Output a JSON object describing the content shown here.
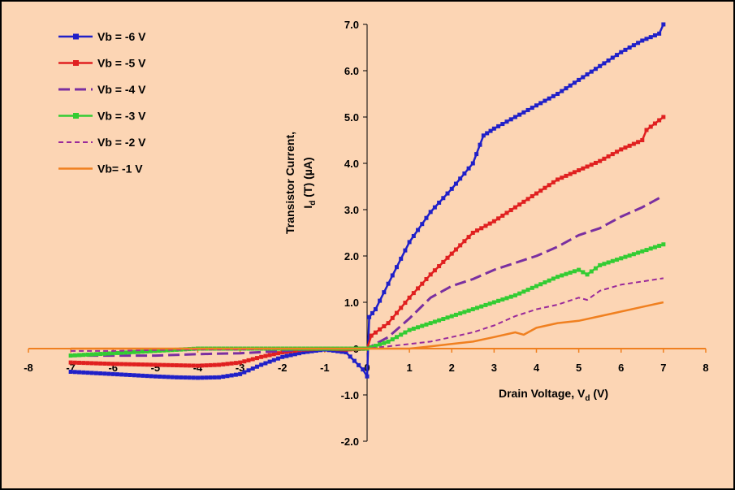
{
  "chart_data": {
    "type": "line",
    "title": "",
    "xlabel_main": "Drain Voltage, V",
    "xlabel_sub": "d",
    "xlabel_unit": " (V)",
    "ylabel_line1": "Transistor Current,",
    "ylabel_main": "I",
    "ylabel_sub": "d",
    "ylabel_rest": " (T) (µA)",
    "xlim": [
      -8,
      8
    ],
    "ylim": [
      -2.0,
      7.0
    ],
    "x_ticks": [
      "-8",
      "-7",
      "-6",
      "-5",
      "-4",
      "-3",
      "-2",
      "-1",
      "0",
      "1",
      "2",
      "3",
      "4",
      "5",
      "6",
      "7",
      "8"
    ],
    "y_ticks": [
      "-2.0",
      "-1.0",
      "0",
      "1.0",
      "2.0",
      "3.0",
      "4.0",
      "5.0",
      "6.0",
      "7.0"
    ],
    "legend_position": "top-left",
    "series": [
      {
        "name": "Vb = -6 V",
        "color": "#2020c8",
        "style": "solid",
        "marker": "square",
        "x": [
          -7,
          -6,
          -5,
          -4.5,
          -4,
          -3.5,
          -3,
          -2.5,
          -2,
          -1.5,
          -1,
          -0.5,
          -0.1,
          0,
          0.05,
          0.2,
          0.5,
          1,
          1.5,
          2,
          2.5,
          2.75,
          3,
          3.5,
          4,
          4.5,
          5,
          5.5,
          6,
          6.5,
          6.9,
          7
        ],
        "y": [
          -0.5,
          -0.55,
          -0.6,
          -0.62,
          -0.63,
          -0.62,
          -0.55,
          -0.35,
          -0.18,
          -0.08,
          -0.02,
          -0.08,
          -0.45,
          -0.6,
          0.68,
          0.85,
          1.4,
          2.3,
          2.95,
          3.45,
          4.0,
          4.6,
          4.75,
          5.0,
          5.25,
          5.5,
          5.8,
          6.1,
          6.4,
          6.65,
          6.8,
          7.0
        ]
      },
      {
        "name": "Vb = -5 V",
        "color": "#e02020",
        "style": "solid",
        "marker": "square",
        "x": [
          -7,
          -6,
          -5,
          -4.5,
          -4,
          -3.5,
          -3,
          -2.5,
          -2,
          -1.5,
          -1,
          -0.5,
          0,
          0.1,
          0.5,
          1,
          1.5,
          2,
          2.5,
          3,
          3.5,
          4,
          4.5,
          5,
          5.5,
          6,
          6.5,
          6.6,
          7
        ],
        "y": [
          -0.3,
          -0.33,
          -0.35,
          -0.36,
          -0.37,
          -0.35,
          -0.3,
          -0.18,
          -0.08,
          -0.02,
          0,
          -0.02,
          0,
          0.28,
          0.55,
          1.1,
          1.6,
          2.05,
          2.5,
          2.75,
          3.05,
          3.35,
          3.65,
          3.85,
          4.05,
          4.3,
          4.5,
          4.72,
          5.0
        ]
      },
      {
        "name": "Vb = -4 V",
        "color": "#7a2fa0",
        "style": "longdash",
        "marker": "none",
        "x": [
          -7,
          -6,
          -5,
          -4,
          -3,
          -2,
          -1,
          0,
          0.5,
          1,
          1.5,
          2,
          2.5,
          3,
          3.5,
          4,
          4.5,
          5,
          5.5,
          6,
          6.5,
          7
        ],
        "y": [
          -0.15,
          -0.15,
          -0.15,
          -0.12,
          -0.1,
          -0.05,
          0,
          0,
          0.25,
          0.65,
          1.1,
          1.35,
          1.5,
          1.7,
          1.85,
          2.0,
          2.2,
          2.45,
          2.6,
          2.85,
          3.05,
          3.3
        ]
      },
      {
        "name": "Vb = -3 V",
        "color": "#33cc33",
        "style": "solid",
        "marker": "square",
        "x": [
          -7,
          -6,
          -5,
          -4,
          -3,
          -2,
          -1,
          0,
          0.5,
          1,
          1.5,
          2,
          2.5,
          3,
          3.5,
          4,
          4.5,
          5,
          5.2,
          5.5,
          6,
          6.5,
          7
        ],
        "y": [
          -0.15,
          -0.1,
          -0.05,
          0,
          0,
          0,
          0,
          0,
          0.15,
          0.4,
          0.55,
          0.7,
          0.85,
          1.0,
          1.15,
          1.35,
          1.55,
          1.7,
          1.6,
          1.8,
          1.95,
          2.1,
          2.25
        ]
      },
      {
        "name": "Vb = -2 V",
        "color": "#9a2a9a",
        "style": "dash",
        "marker": "none",
        "x": [
          -7,
          -6,
          -5,
          -4,
          -3,
          -2,
          -1,
          0,
          0.5,
          1,
          1.5,
          2,
          2.5,
          3,
          3.5,
          4,
          4.5,
          5,
          5.2,
          5.5,
          6,
          6.5,
          7
        ],
        "y": [
          -0.05,
          -0.05,
          -0.03,
          -0.02,
          -0.02,
          0,
          0,
          0,
          0.05,
          0.1,
          0.15,
          0.25,
          0.35,
          0.5,
          0.7,
          0.85,
          0.95,
          1.1,
          1.05,
          1.25,
          1.38,
          1.45,
          1.52
        ]
      },
      {
        "name": "Vb= -1 V",
        "color": "#f08020",
        "style": "solid",
        "marker": "none",
        "x": [
          -7,
          -6,
          -5,
          -4,
          -3,
          -2,
          -1,
          0,
          0.5,
          1,
          1.5,
          2,
          2.5,
          3,
          3.5,
          3.7,
          4,
          4.5,
          5,
          5.5,
          6,
          6.5,
          7
        ],
        "y": [
          0,
          0,
          0,
          0,
          0,
          0,
          0,
          0,
          0,
          0,
          0.05,
          0.1,
          0.15,
          0.25,
          0.35,
          0.3,
          0.45,
          0.55,
          0.6,
          0.7,
          0.8,
          0.9,
          1.0
        ]
      }
    ]
  }
}
